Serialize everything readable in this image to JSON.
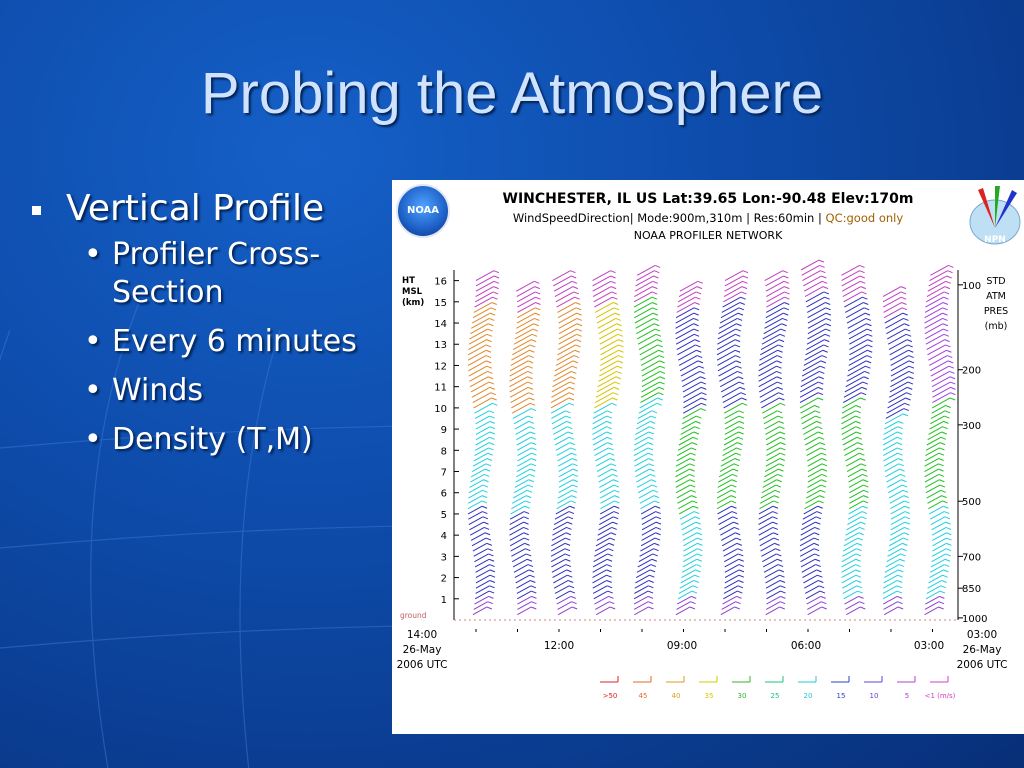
{
  "slide": {
    "title": "Probing the Atmosphere",
    "bullets": [
      {
        "text": "Vertical Profile",
        "sub": [
          "Profiler Cross-Section",
          "Every 6 minutes",
          "Winds",
          "Density (T,M)"
        ]
      }
    ]
  },
  "chart_header": {
    "line1": "WINCHESTER, IL US  Lat:39.65 Lon:-90.48 Elev:170m",
    "line2_main": "WindSpeedDirection| Mode:900m,310m | Res:60min | ",
    "line2_qc": "QC:good only",
    "line3": "NOAA PROFILER NETWORK",
    "noaa_logo": "NOAA",
    "npn_logo": "NPN"
  },
  "chart_data": {
    "type": "wind-barb time-height profile",
    "title": "WINCHESTER, IL US  Lat:39.65 Lon:-90.48 Elev:170m",
    "left_axis_label": [
      "HT",
      "MSL",
      "(km)"
    ],
    "left_axis_ticks": [
      1,
      2,
      3,
      4,
      5,
      6,
      7,
      8,
      9,
      10,
      11,
      12,
      13,
      14,
      15,
      16
    ],
    "left_axis_range": [
      0,
      16.5
    ],
    "ground_label": "ground",
    "right_axis_label": [
      "STD",
      "ATM",
      "PRES",
      "(mb)"
    ],
    "right_axis_ticks": [
      {
        "p": 100,
        "km": 15.8
      },
      {
        "p": 200,
        "km": 11.8
      },
      {
        "p": 300,
        "km": 9.2
      },
      {
        "p": 500,
        "km": 5.6
      },
      {
        "p": 700,
        "km": 3.0
      },
      {
        "p": 850,
        "km": 1.5
      },
      {
        "p": 1000,
        "km": 0.1
      }
    ],
    "x_axis": {
      "left_label": [
        "14:00",
        "26-May",
        "2006 UTC"
      ],
      "right_label": [
        "03:00",
        "26-May",
        "2006 UTC"
      ],
      "ticks": [
        "12:00",
        "09:00",
        "06:00",
        "03:00"
      ]
    },
    "legend": {
      "labels": [
        ">50",
        "45",
        "40",
        "35",
        "30",
        "25",
        "20",
        "15",
        "10",
        "5",
        "<1 (m/s)"
      ],
      "colors": [
        "#e22020",
        "#e06a2a",
        "#e39a20",
        "#d6c800",
        "#38b030",
        "#20c080",
        "#20c8d8",
        "#3040c8",
        "#6a40d0",
        "#b040d0",
        "#d040c0"
      ]
    },
    "profiles": [
      {
        "profile": 1,
        "top_km": 16.0,
        "dominant": {
          "upper": "orange",
          "mid": "cyan",
          "lower": "blue"
        }
      },
      {
        "profile": 2,
        "top_km": 15.6,
        "dominant": {
          "upper": "orange",
          "mid": "cyan",
          "lower": "blue"
        }
      },
      {
        "profile": 3,
        "top_km": 15.9,
        "dominant": {
          "upper": "orange",
          "mid": "cyan",
          "lower": "blue"
        }
      },
      {
        "profile": 4,
        "top_km": 16.0,
        "dominant": {
          "upper": "yellow",
          "mid": "cyan",
          "lower": "blue"
        }
      },
      {
        "profile": 5,
        "top_km": 16.2,
        "dominant": {
          "upper": "green",
          "mid": "cyan",
          "lower": "blue"
        }
      },
      {
        "profile": 6,
        "top_km": 15.6,
        "dominant": {
          "upper": "blue",
          "mid": "green",
          "lower": "cyan"
        }
      },
      {
        "profile": 7,
        "top_km": 16.1,
        "dominant": {
          "upper": "blue",
          "mid": "green",
          "lower": "blue"
        }
      },
      {
        "profile": 8,
        "top_km": 15.9,
        "dominant": {
          "upper": "blue",
          "mid": "green",
          "lower": "blue"
        }
      },
      {
        "profile": 9,
        "top_km": 16.4,
        "dominant": {
          "upper": "blue",
          "mid": "green",
          "lower": "blue"
        }
      },
      {
        "profile": 10,
        "top_km": 16.3,
        "dominant": {
          "upper": "blue",
          "mid": "green",
          "lower": "cyan"
        }
      },
      {
        "profile": 11,
        "top_km": 15.3,
        "dominant": {
          "upper": "blue",
          "mid": "cyan",
          "lower": "cyan"
        }
      },
      {
        "profile": 12,
        "top_km": 16.3,
        "dominant": {
          "upper": "purple",
          "mid": "green",
          "lower": "cyan"
        }
      }
    ]
  }
}
